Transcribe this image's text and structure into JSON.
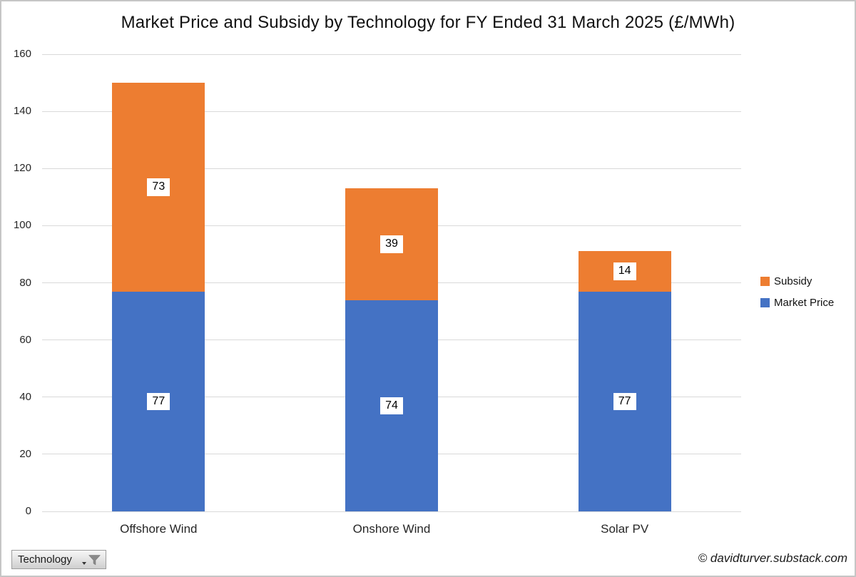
{
  "title": "Market Price and Subsidy by Technology for FY Ended 31 March 2025 (£/MWh)",
  "chart_data": {
    "type": "bar",
    "stacked": true,
    "categories": [
      "Offshore Wind",
      "Onshore Wind",
      "Solar PV"
    ],
    "series": [
      {
        "name": "Market Price",
        "color": "#4472C4",
        "values": [
          77,
          74,
          77
        ]
      },
      {
        "name": "Subsidy",
        "color": "#ED7D31",
        "values": [
          73,
          39,
          14
        ]
      }
    ],
    "data_labels": {
      "Market Price": [
        "77",
        "74",
        "77"
      ],
      "Subsidy": [
        "73",
        "39",
        "14"
      ]
    },
    "ylim": [
      0,
      160
    ],
    "yticks": [
      "0",
      "20",
      "40",
      "60",
      "80",
      "100",
      "120",
      "140",
      "160"
    ],
    "grid": true,
    "gridline_color": "#D9D9D9",
    "legend_position": "right",
    "legend_order": [
      "Subsidy",
      "Market Price"
    ]
  },
  "filter_button": {
    "label": "Technology",
    "icon": "funnel-icon"
  },
  "footer": {
    "credit": "© davidturver.substack.com"
  }
}
